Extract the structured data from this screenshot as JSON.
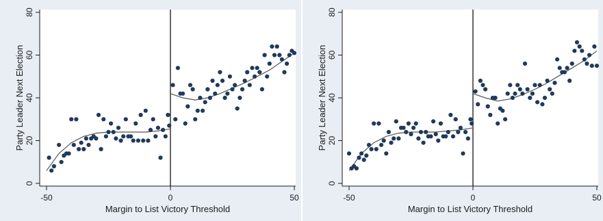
{
  "chart_data": [
    {
      "type": "scatter",
      "title": "",
      "xlabel": "Margin to List Victory Threshold",
      "ylabel": "Party Leader Next Election",
      "xlim": [
        -50,
        50
      ],
      "ylim": [
        0,
        80
      ],
      "xticks": [
        "-50",
        "0",
        "50"
      ],
      "yticks": [
        "0",
        "20",
        "40",
        "60",
        "80"
      ],
      "grid": false,
      "threshold_line_x": 0,
      "points": [
        [
          -49,
          12
        ],
        [
          -48,
          6
        ],
        [
          -47,
          8
        ],
        [
          -45,
          18
        ],
        [
          -44,
          10
        ],
        [
          -43,
          13
        ],
        [
          -42,
          14
        ],
        [
          -41,
          14
        ],
        [
          -40,
          30
        ],
        [
          -39,
          18
        ],
        [
          -38,
          30
        ],
        [
          -37,
          16
        ],
        [
          -36,
          19
        ],
        [
          -35,
          16
        ],
        [
          -34,
          21
        ],
        [
          -33,
          18
        ],
        [
          -32,
          21
        ],
        [
          -31,
          22
        ],
        [
          -30,
          21
        ],
        [
          -29,
          32
        ],
        [
          -28,
          16
        ],
        [
          -27,
          30
        ],
        [
          -26,
          22
        ],
        [
          -25,
          24
        ],
        [
          -24,
          28
        ],
        [
          -23,
          24
        ],
        [
          -22,
          21
        ],
        [
          -21,
          26
        ],
        [
          -20,
          20
        ],
        [
          -19,
          22
        ],
        [
          -18,
          30
        ],
        [
          -17,
          22
        ],
        [
          -16,
          22
        ],
        [
          -15,
          20
        ],
        [
          -14,
          28
        ],
        [
          -13,
          20
        ],
        [
          -12,
          32
        ],
        [
          -11,
          20
        ],
        [
          -10,
          34
        ],
        [
          -9,
          20
        ],
        [
          -8,
          25
        ],
        [
          -7,
          30
        ],
        [
          -6,
          22
        ],
        [
          -5,
          26
        ],
        [
          -4,
          12
        ],
        [
          -3,
          25
        ],
        [
          -2,
          22
        ],
        [
          -1,
          32
        ],
        [
          -0.5,
          27
        ],
        [
          1,
          46
        ],
        [
          2,
          30
        ],
        [
          3,
          54
        ],
        [
          4,
          42
        ],
        [
          5,
          42
        ],
        [
          6,
          28
        ],
        [
          7,
          36
        ],
        [
          8,
          46
        ],
        [
          9,
          44
        ],
        [
          10,
          30
        ],
        [
          11,
          34
        ],
        [
          12,
          40
        ],
        [
          13,
          34
        ],
        [
          14,
          38
        ],
        [
          15,
          44
        ],
        [
          16,
          40
        ],
        [
          17,
          48
        ],
        [
          18,
          42
        ],
        [
          19,
          46
        ],
        [
          20,
          52
        ],
        [
          21,
          48
        ],
        [
          22,
          40
        ],
        [
          23,
          42
        ],
        [
          24,
          50
        ],
        [
          25,
          44
        ],
        [
          26,
          46
        ],
        [
          27,
          35
        ],
        [
          28,
          40
        ],
        [
          29,
          44
        ],
        [
          30,
          48
        ],
        [
          31,
          52
        ],
        [
          32,
          46
        ],
        [
          33,
          54
        ],
        [
          34,
          50
        ],
        [
          35,
          54
        ],
        [
          36,
          52
        ],
        [
          37,
          44
        ],
        [
          38,
          60
        ],
        [
          39,
          50
        ],
        [
          40,
          56
        ],
        [
          41,
          64
        ],
        [
          42,
          60
        ],
        [
          43,
          64
        ],
        [
          44,
          60
        ],
        [
          45,
          58
        ],
        [
          46,
          52
        ],
        [
          47,
          56
        ],
        [
          48,
          60
        ],
        [
          49,
          62
        ],
        [
          50,
          61
        ]
      ],
      "fit_left": [
        [
          -50,
          6
        ],
        [
          -45,
          14
        ],
        [
          -40,
          19
        ],
        [
          -35,
          22
        ],
        [
          -30,
          23.5
        ],
        [
          -25,
          24
        ],
        [
          -20,
          24
        ],
        [
          -15,
          24
        ],
        [
          -10,
          24
        ],
        [
          -5,
          24.5
        ],
        [
          0,
          25.5
        ]
      ],
      "fit_right": [
        [
          0,
          42
        ],
        [
          5,
          40
        ],
        [
          10,
          39
        ],
        [
          15,
          40
        ],
        [
          20,
          42
        ],
        [
          25,
          44.5
        ],
        [
          30,
          47
        ],
        [
          35,
          50
        ],
        [
          40,
          53
        ],
        [
          45,
          57
        ],
        [
          50,
          61
        ]
      ]
    },
    {
      "type": "scatter",
      "title": "",
      "xlabel": "Margin to List Victory Threshold",
      "ylabel": "Party Leader Next Election",
      "xlim": [
        -50,
        50
      ],
      "ylim": [
        0,
        80
      ],
      "xticks": [
        "-50",
        "0",
        "50"
      ],
      "yticks": [
        "0",
        "20",
        "40",
        "60",
        "80"
      ],
      "grid": false,
      "threshold_line_x": 0,
      "points": [
        [
          -50,
          14
        ],
        [
          -49,
          7
        ],
        [
          -48,
          8
        ],
        [
          -47,
          7
        ],
        [
          -46,
          12
        ],
        [
          -45,
          14
        ],
        [
          -44,
          11
        ],
        [
          -43,
          13
        ],
        [
          -42,
          18
        ],
        [
          -41,
          16
        ],
        [
          -40,
          28
        ],
        [
          -39,
          16
        ],
        [
          -38,
          28
        ],
        [
          -37,
          18
        ],
        [
          -36,
          20
        ],
        [
          -35,
          14
        ],
        [
          -34,
          24
        ],
        [
          -33,
          19
        ],
        [
          -32,
          21
        ],
        [
          -31,
          29
        ],
        [
          -30,
          21
        ],
        [
          -29,
          26
        ],
        [
          -28,
          26
        ],
        [
          -27,
          24
        ],
        [
          -26,
          28
        ],
        [
          -25,
          23
        ],
        [
          -24,
          26
        ],
        [
          -23,
          28
        ],
        [
          -22,
          21
        ],
        [
          -21,
          24
        ],
        [
          -20,
          19
        ],
        [
          -19,
          24
        ],
        [
          -18,
          22
        ],
        [
          -17,
          22
        ],
        [
          -16,
          29
        ],
        [
          -15,
          23
        ],
        [
          -14,
          20
        ],
        [
          -13,
          28
        ],
        [
          -12,
          22
        ],
        [
          -11,
          22
        ],
        [
          -10,
          24
        ],
        [
          -9,
          32
        ],
        [
          -8,
          22
        ],
        [
          -7,
          30
        ],
        [
          -6,
          24
        ],
        [
          -5,
          26
        ],
        [
          -4,
          14
        ],
        [
          -3,
          24
        ],
        [
          -2,
          21
        ],
        [
          -1,
          30
        ],
        [
          -0.5,
          28
        ],
        [
          1,
          43
        ],
        [
          2,
          37
        ],
        [
          3,
          48
        ],
        [
          4,
          46
        ],
        [
          5,
          44
        ],
        [
          6,
          36
        ],
        [
          7,
          32
        ],
        [
          8,
          40
        ],
        [
          9,
          40
        ],
        [
          10,
          28
        ],
        [
          11,
          35
        ],
        [
          12,
          34
        ],
        [
          13,
          30
        ],
        [
          14,
          42
        ],
        [
          15,
          46
        ],
        [
          16,
          40
        ],
        [
          17,
          42
        ],
        [
          18,
          46
        ],
        [
          19,
          44
        ],
        [
          20,
          42
        ],
        [
          21,
          56
        ],
        [
          22,
          44
        ],
        [
          23,
          40
        ],
        [
          24,
          42
        ],
        [
          25,
          46
        ],
        [
          26,
          38
        ],
        [
          27,
          46
        ],
        [
          28,
          37
        ],
        [
          29,
          40
        ],
        [
          30,
          48
        ],
        [
          31,
          44
        ],
        [
          32,
          42
        ],
        [
          33,
          47
        ],
        [
          34,
          58
        ],
        [
          35,
          54
        ],
        [
          36,
          52
        ],
        [
          37,
          52
        ],
        [
          38,
          54
        ],
        [
          39,
          48
        ],
        [
          40,
          56
        ],
        [
          41,
          62
        ],
        [
          42,
          66
        ],
        [
          43,
          64
        ],
        [
          44,
          62
        ],
        [
          45,
          58
        ],
        [
          46,
          56
        ],
        [
          47,
          60
        ],
        [
          48,
          55
        ],
        [
          49,
          64
        ],
        [
          50,
          55
        ]
      ],
      "fit_left": [
        [
          -50,
          6
        ],
        [
          -45,
          14
        ],
        [
          -40,
          19
        ],
        [
          -35,
          22
        ],
        [
          -30,
          23.5
        ],
        [
          -25,
          24
        ],
        [
          -20,
          24
        ],
        [
          -15,
          24
        ],
        [
          -10,
          24.5
        ],
        [
          -5,
          25
        ],
        [
          0,
          26
        ]
      ],
      "fit_right": [
        [
          0,
          42
        ],
        [
          5,
          40
        ],
        [
          10,
          38.5
        ],
        [
          15,
          39.5
        ],
        [
          20,
          41.5
        ],
        [
          25,
          44
        ],
        [
          30,
          47
        ],
        [
          35,
          50.5
        ],
        [
          40,
          54
        ],
        [
          45,
          57.5
        ],
        [
          50,
          62
        ]
      ]
    }
  ]
}
